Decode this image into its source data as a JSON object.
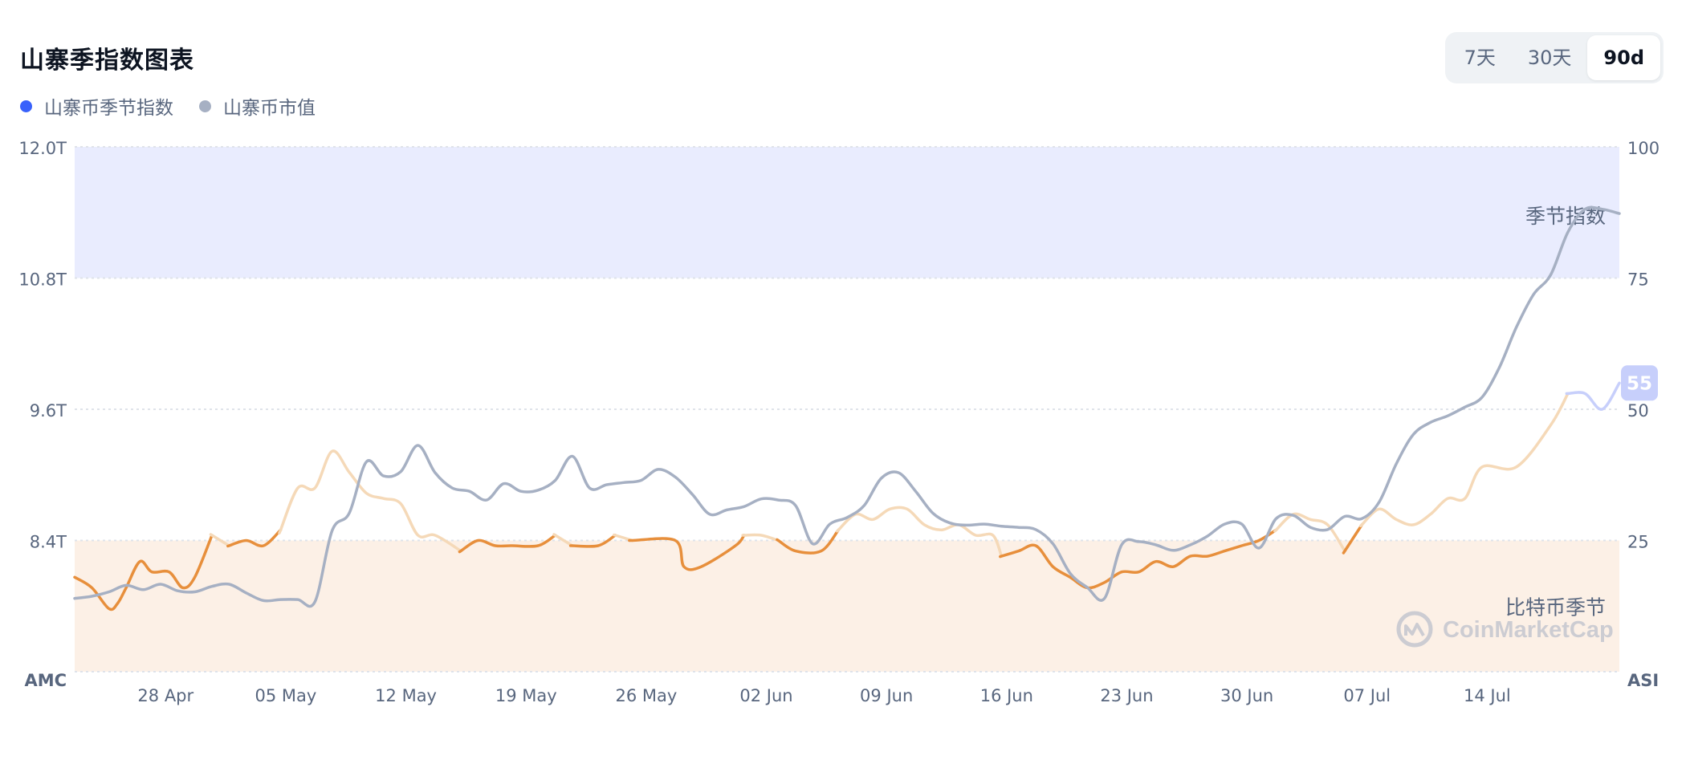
{
  "header": {
    "title": "山寨季指数图表",
    "tabs": [
      {
        "label": "7天",
        "active": false
      },
      {
        "label": "30天",
        "active": false
      },
      {
        "label": "90d",
        "active": true
      }
    ]
  },
  "legend": [
    {
      "label": "山寨币季节指数",
      "color": "#3861fb"
    },
    {
      "label": "山寨币市值",
      "color": "#a6b0c3"
    }
  ],
  "chart_data": {
    "type": "line",
    "left_axis": {
      "title": "AMC",
      "ticks": [
        "12.0T",
        "10.8T",
        "9.6T",
        "8.4T"
      ],
      "range": [
        7.2,
        12.0
      ]
    },
    "right_axis": {
      "title": "ASI",
      "ticks": [
        "100",
        "75",
        "50",
        "25"
      ],
      "range": [
        0,
        100
      ]
    },
    "x_ticks": [
      "28 Apr",
      "05 May",
      "12 May",
      "19 May",
      "26 May",
      "02 Jun",
      "09 Jun",
      "16 Jun",
      "23 Jun",
      "30 Jun",
      "07 Jul",
      "14 Jul"
    ],
    "x_range_days": [
      0,
      90
    ],
    "x_tick_days": [
      5.3,
      12.3,
      19.3,
      26.3,
      33.3,
      40.3,
      47.3,
      54.3,
      61.3,
      68.3,
      75.3,
      82.3
    ],
    "zones": [
      {
        "label": "季节指数",
        "from": 75,
        "to": 100,
        "color": "#e9ecfe"
      },
      {
        "label": "比特币季节",
        "from": 0,
        "to": 25,
        "color": "#fcf0e6"
      }
    ],
    "current_value_badge": "55",
    "watermark": "CoinMarketCap",
    "series": [
      {
        "name": "山寨币季节指数",
        "axis": "right",
        "colors": {
          "btc_season": "#e78f3c",
          "neutral": "#f5d9b8",
          "alt_season_side": "#c7cffb"
        },
        "points": [
          [
            0,
            18
          ],
          [
            1,
            16
          ],
          [
            2,
            12
          ],
          [
            2.5,
            13
          ],
          [
            3,
            16
          ],
          [
            3.8,
            21
          ],
          [
            4.5,
            19
          ],
          [
            5.5,
            19
          ],
          [
            6.3,
            16
          ],
          [
            7,
            18
          ],
          [
            8,
            26
          ],
          [
            9,
            24
          ],
          [
            10,
            25
          ],
          [
            11,
            24
          ],
          [
            12,
            27
          ],
          [
            13,
            35
          ],
          [
            14,
            35
          ],
          [
            15,
            42
          ],
          [
            16,
            38
          ],
          [
            17,
            34
          ],
          [
            18,
            33
          ],
          [
            19,
            32
          ],
          [
            20,
            26
          ],
          [
            21,
            26
          ],
          [
            22.5,
            23
          ],
          [
            23.5,
            25
          ],
          [
            24.5,
            24
          ],
          [
            25.5,
            24
          ],
          [
            27,
            24
          ],
          [
            28,
            26
          ],
          [
            29,
            24
          ],
          [
            30.5,
            24
          ],
          [
            31.5,
            26
          ],
          [
            32.5,
            25
          ],
          [
            35,
            25
          ],
          [
            35.5,
            20
          ],
          [
            36.5,
            20
          ],
          [
            38.5,
            24
          ],
          [
            39,
            26
          ],
          [
            40,
            26
          ],
          [
            41,
            25
          ],
          [
            42,
            23
          ],
          [
            43.5,
            23
          ],
          [
            44.5,
            27
          ],
          [
            45.5,
            30
          ],
          [
            46.5,
            29
          ],
          [
            47.5,
            31
          ],
          [
            48.5,
            31
          ],
          [
            49.5,
            28
          ],
          [
            50.5,
            27
          ],
          [
            51.5,
            28
          ],
          [
            52.5,
            26
          ],
          [
            53.5,
            26
          ],
          [
            54,
            22
          ],
          [
            55,
            23
          ],
          [
            56,
            24
          ],
          [
            57,
            20
          ],
          [
            58,
            18
          ],
          [
            59,
            16
          ],
          [
            60,
            17
          ],
          [
            61,
            19
          ],
          [
            62,
            19
          ],
          [
            63,
            21
          ],
          [
            64,
            20
          ],
          [
            65,
            22
          ],
          [
            66,
            22
          ],
          [
            67,
            23
          ],
          [
            68,
            24
          ],
          [
            69,
            25
          ],
          [
            70,
            27
          ],
          [
            71,
            30
          ],
          [
            72,
            29
          ],
          [
            73,
            28
          ],
          [
            74,
            23
          ],
          [
            75,
            28
          ],
          [
            76,
            31
          ],
          [
            77,
            29
          ],
          [
            78,
            28
          ],
          [
            79,
            30
          ],
          [
            80,
            33
          ],
          [
            81,
            33
          ],
          [
            82,
            39
          ],
          [
            84,
            39
          ],
          [
            86,
            47
          ],
          [
            87,
            53
          ],
          [
            88,
            53
          ],
          [
            89,
            50
          ],
          [
            90,
            55
          ]
        ]
      },
      {
        "name": "山寨币市值",
        "axis": "left",
        "color": "#a6b0c3",
        "points": [
          [
            0,
            7.87
          ],
          [
            1,
            7.89
          ],
          [
            2,
            7.93
          ],
          [
            3,
            7.99
          ],
          [
            4,
            7.95
          ],
          [
            5,
            8.0
          ],
          [
            6,
            7.94
          ],
          [
            7,
            7.93
          ],
          [
            8,
            7.98
          ],
          [
            9,
            8.0
          ],
          [
            10,
            7.92
          ],
          [
            11,
            7.85
          ],
          [
            12,
            7.86
          ],
          [
            13,
            7.86
          ],
          [
            14,
            7.84
          ],
          [
            15,
            8.49
          ],
          [
            16,
            8.65
          ],
          [
            17,
            9.12
          ],
          [
            18,
            8.99
          ],
          [
            19,
            9.03
          ],
          [
            20,
            9.27
          ],
          [
            21,
            9.02
          ],
          [
            22,
            8.88
          ],
          [
            23,
            8.85
          ],
          [
            24,
            8.77
          ],
          [
            25,
            8.92
          ],
          [
            26,
            8.85
          ],
          [
            27,
            8.86
          ],
          [
            28,
            8.95
          ],
          [
            29,
            9.17
          ],
          [
            30,
            8.88
          ],
          [
            31,
            8.91
          ],
          [
            32,
            8.93
          ],
          [
            33,
            8.95
          ],
          [
            34,
            9.05
          ],
          [
            35,
            8.98
          ],
          [
            36,
            8.82
          ],
          [
            37,
            8.64
          ],
          [
            38,
            8.68
          ],
          [
            39,
            8.71
          ],
          [
            40,
            8.78
          ],
          [
            41,
            8.77
          ],
          [
            42,
            8.72
          ],
          [
            43,
            8.37
          ],
          [
            44,
            8.55
          ],
          [
            45,
            8.61
          ],
          [
            46,
            8.72
          ],
          [
            47,
            8.97
          ],
          [
            48,
            9.02
          ],
          [
            49,
            8.85
          ],
          [
            50,
            8.65
          ],
          [
            51,
            8.56
          ],
          [
            52,
            8.54
          ],
          [
            53,
            8.55
          ],
          [
            54,
            8.53
          ],
          [
            55,
            8.52
          ],
          [
            56,
            8.5
          ],
          [
            57,
            8.37
          ],
          [
            58,
            8.1
          ],
          [
            59,
            7.97
          ],
          [
            60,
            7.87
          ],
          [
            61,
            8.36
          ],
          [
            62,
            8.39
          ],
          [
            63,
            8.36
          ],
          [
            64,
            8.31
          ],
          [
            65,
            8.36
          ],
          [
            66,
            8.44
          ],
          [
            67,
            8.55
          ],
          [
            68,
            8.55
          ],
          [
            69,
            8.33
          ],
          [
            70,
            8.6
          ],
          [
            71,
            8.63
          ],
          [
            72,
            8.52
          ],
          [
            73,
            8.5
          ],
          [
            74,
            8.62
          ],
          [
            75,
            8.6
          ],
          [
            76,
            8.75
          ],
          [
            77,
            9.1
          ],
          [
            78,
            9.37
          ],
          [
            79,
            9.48
          ],
          [
            80,
            9.54
          ],
          [
            81,
            9.62
          ],
          [
            82,
            9.71
          ],
          [
            83,
            9.98
          ],
          [
            84,
            10.35
          ],
          [
            85,
            10.65
          ],
          [
            86,
            10.83
          ],
          [
            87,
            11.22
          ],
          [
            88,
            11.43
          ],
          [
            89,
            11.43
          ],
          [
            90,
            11.39
          ]
        ]
      }
    ]
  }
}
